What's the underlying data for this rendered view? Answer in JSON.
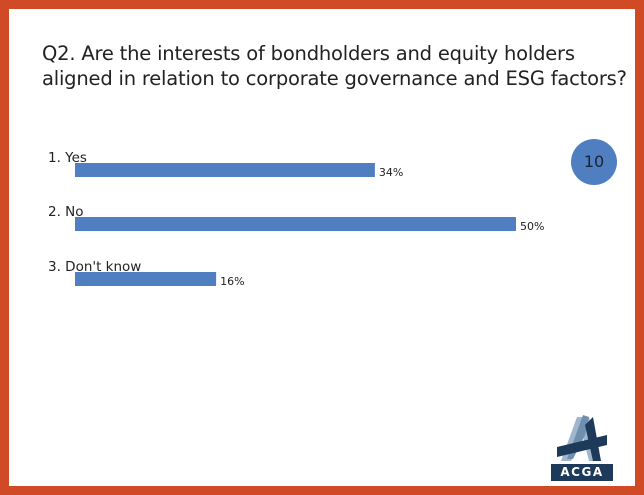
{
  "question": {
    "text": "Q2. Are the interests of bondholders and equity holders aligned in relation to corporate governance and ESG factors?"
  },
  "badge": {
    "value": "10"
  },
  "logo": {
    "text": "ACGA"
  },
  "colors": {
    "border": "#cf4a25",
    "bar": "#4f7fc1",
    "badge": "#4f7fc1",
    "logo_dark": "#1e3a5a",
    "logo_light": "#9fb6cc"
  },
  "chart_data": {
    "type": "bar",
    "orientation": "horizontal",
    "categories": [
      "1.  Yes",
      "2.  No",
      "3.  Don't know"
    ],
    "values": [
      34,
      50,
      16
    ],
    "data_labels": [
      "34%",
      "50%",
      "16%"
    ],
    "title": "",
    "xlabel": "",
    "ylabel": "",
    "xlim": [
      0,
      50
    ],
    "grid": false,
    "legend": "none"
  }
}
